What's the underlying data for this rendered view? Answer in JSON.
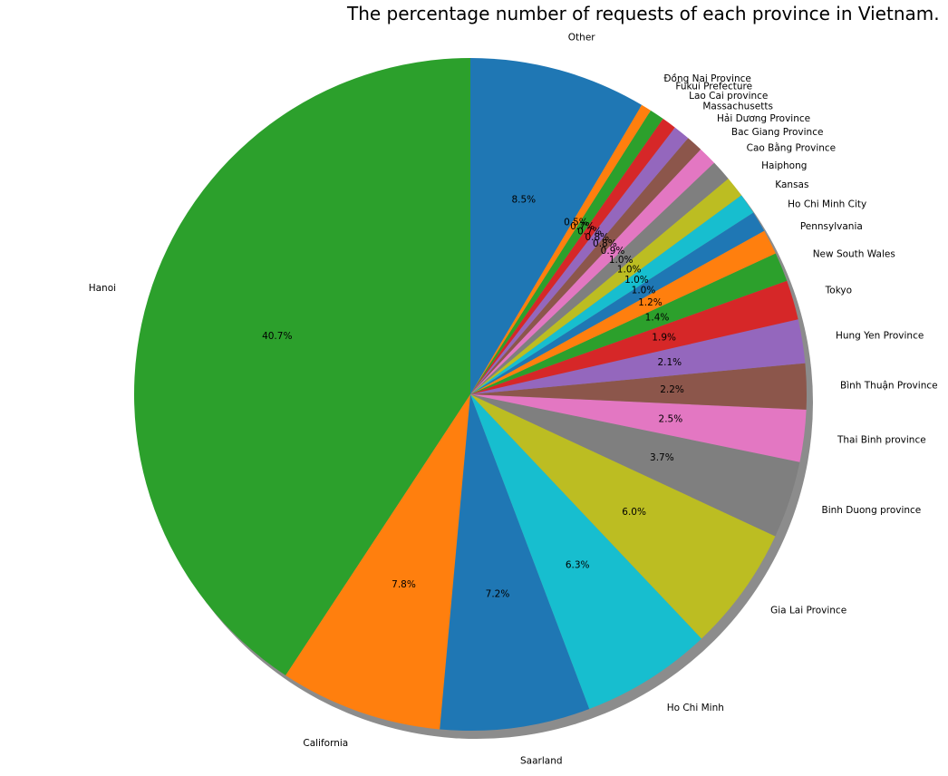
{
  "chart_data": {
    "type": "pie",
    "title": "The percentage number of requests of each province in Vietnam.",
    "start_angle_deg": 90,
    "direction": "counterclockwise",
    "shadow": true,
    "slices": [
      {
        "label": "Hanoi",
        "value": 40.7,
        "pct_label": "40.7%",
        "color": "#2ca02c"
      },
      {
        "label": "California",
        "value": 7.8,
        "pct_label": "7.8%",
        "color": "#ff7f0e"
      },
      {
        "label": "Saarland",
        "value": 7.2,
        "pct_label": "7.2%",
        "color": "#1f77b4"
      },
      {
        "label": "Ho Chi Minh",
        "value": 6.3,
        "pct_label": "6.3%",
        "color": "#17becf"
      },
      {
        "label": "Gia Lai Province",
        "value": 6.0,
        "pct_label": "6.0%",
        "color": "#bcbd22"
      },
      {
        "label": "Binh Duong province",
        "value": 3.7,
        "pct_label": "3.7%",
        "color": "#7f7f7f"
      },
      {
        "label": "Thai Binh province",
        "value": 2.5,
        "pct_label": "2.5%",
        "color": "#e377c2"
      },
      {
        "label": "Bình Thuận Province",
        "value": 2.2,
        "pct_label": "2.2%",
        "color": "#8c564b"
      },
      {
        "label": "Hung Yen Province",
        "value": 2.1,
        "pct_label": "2.1%",
        "color": "#9467bd"
      },
      {
        "label": "Tokyo",
        "value": 1.9,
        "pct_label": "1.9%",
        "color": "#d62728"
      },
      {
        "label": "New South Wales",
        "value": 1.4,
        "pct_label": "1.4%",
        "color": "#2ca02c"
      },
      {
        "label": "Pennsylvania",
        "value": 1.2,
        "pct_label": "1.2%",
        "color": "#ff7f0e"
      },
      {
        "label": "Ho Chi Minh City",
        "value": 1.0,
        "pct_label": "1.0%",
        "color": "#1f77b4"
      },
      {
        "label": "Kansas",
        "value": 1.0,
        "pct_label": "1.0%",
        "color": "#17becf"
      },
      {
        "label": "Haiphong",
        "value": 1.0,
        "pct_label": "1.0%",
        "color": "#bcbd22"
      },
      {
        "label": "Cao Bằng Province",
        "value": 1.0,
        "pct_label": "1.0%",
        "color": "#7f7f7f"
      },
      {
        "label": "Bac Giang Province",
        "value": 0.9,
        "pct_label": "0.9%",
        "color": "#e377c2"
      },
      {
        "label": "Hải Dương Province",
        "value": 0.8,
        "pct_label": "0.8%",
        "color": "#8c564b"
      },
      {
        "label": "Massachusetts",
        "value": 0.8,
        "pct_label": "0.8%",
        "color": "#9467bd"
      },
      {
        "label": "Lao Cai province",
        "value": 0.7,
        "pct_label": "0.7%",
        "color": "#d62728"
      },
      {
        "label": "Fukui Prefecture",
        "value": 0.7,
        "pct_label": "0.7%",
        "color": "#2ca02c"
      },
      {
        "label": "Đồng Nai Province",
        "value": 0.5,
        "pct_label": "0.5%",
        "color": "#ff7f0e"
      },
      {
        "label": "Other",
        "value": 8.5,
        "pct_label": "8.5%",
        "color": "#1f77b4"
      }
    ]
  }
}
